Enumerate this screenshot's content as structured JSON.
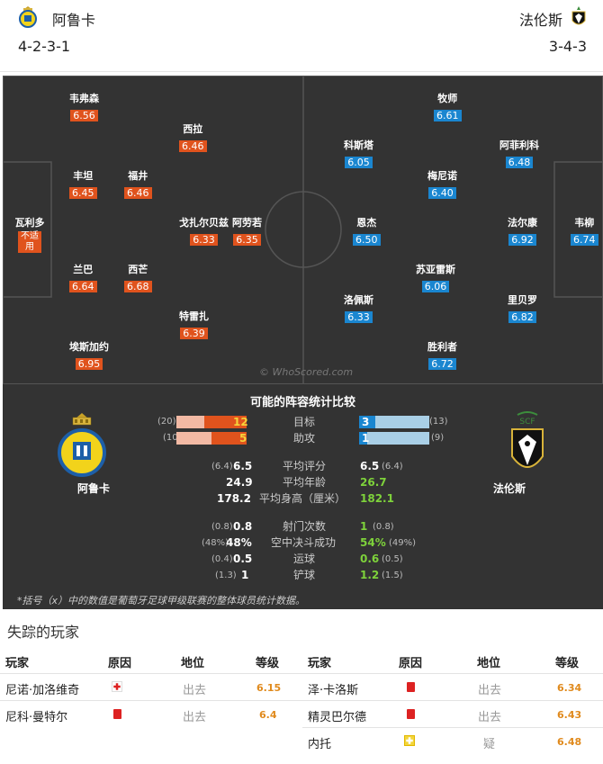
{
  "header": {
    "home_name": "阿鲁卡",
    "home_formation": "4-2-3-1",
    "away_name": "法伦斯",
    "away_formation": "3-4-3"
  },
  "pitch": {
    "watermark": "© WhoScored.com",
    "home_players": [
      {
        "name": "韦弗森",
        "rating": "6.56"
      },
      {
        "name": "西拉",
        "rating": "6.46"
      },
      {
        "name": "丰坦",
        "rating": "6.45"
      },
      {
        "name": "福井",
        "rating": "6.46"
      },
      {
        "name": "瓦利多",
        "rating": "不适用"
      },
      {
        "name": "戈扎尔贝兹",
        "rating": "6.33"
      },
      {
        "name": "阿劳若",
        "rating": "6.35"
      },
      {
        "name": "兰巴",
        "rating": "6.64"
      },
      {
        "name": "西芒",
        "rating": "6.68"
      },
      {
        "name": "特雷扎",
        "rating": "6.39"
      },
      {
        "name": "埃斯加约",
        "rating": "6.95"
      }
    ],
    "away_players": [
      {
        "name": "牧师",
        "rating": "6.61"
      },
      {
        "name": "科斯塔",
        "rating": "6.05"
      },
      {
        "name": "阿菲利科",
        "rating": "6.48"
      },
      {
        "name": "梅尼诺",
        "rating": "6.40"
      },
      {
        "name": "恩杰",
        "rating": "6.50"
      },
      {
        "name": "法尔康",
        "rating": "6.92"
      },
      {
        "name": "韦柳",
        "rating": "6.74"
      },
      {
        "name": "苏亚雷斯",
        "rating": "6.06"
      },
      {
        "name": "洛佩斯",
        "rating": "6.33"
      },
      {
        "name": "里贝罗",
        "rating": "6.82"
      },
      {
        "name": "胜利者",
        "rating": "6.72"
      }
    ]
  },
  "compare": {
    "title": "可能的阵容统计比较",
    "home_name": "阿鲁卡",
    "away_name": "法伦斯",
    "bars": [
      {
        "label": "目标",
        "home_avg": "(20)",
        "home": "12",
        "home_frac": 0.6,
        "away": "3",
        "away_avg": "(13)",
        "away_frac": 0.23
      },
      {
        "label": "助攻",
        "home_avg": "(10)",
        "home": "5",
        "home_frac": 0.5,
        "away": "1",
        "away_avg": "(9)",
        "away_frac": 0.11
      }
    ],
    "stats1": [
      {
        "label": "平均评分",
        "home_avg": "(6.4)",
        "home": "6.5",
        "away": "6.5",
        "away_avg": "(6.4)"
      },
      {
        "label": "平均年龄",
        "home_avg": "",
        "home": "24.9",
        "away": "26.7",
        "away_avg": ""
      },
      {
        "label": "平均身高（厘米）",
        "home_avg": "",
        "home": "178.2",
        "away": "182.1",
        "away_avg": ""
      }
    ],
    "stats2": [
      {
        "label": "射门次数",
        "home_avg": "(0.8)",
        "home": "0.8",
        "away": "1",
        "away_avg": "(0.8)"
      },
      {
        "label": "空中决斗成功",
        "home_avg": "(48%)",
        "home": "48%",
        "away": "54%",
        "away_avg": "(49%)"
      },
      {
        "label": "运球",
        "home_avg": "(0.4)",
        "home": "0.5",
        "away": "0.6",
        "away_avg": "(0.5)"
      },
      {
        "label": "铲球",
        "home_avg": "(1.3)",
        "home": "1",
        "away": "1.2",
        "away_avg": "(1.5)"
      }
    ],
    "footnote": "*括号（x）中的数值是葡萄牙足球甲级联赛的整体球员统计数据。"
  },
  "missing": {
    "title": "失踪的玩家",
    "headers": {
      "player": "玩家",
      "reason": "原因",
      "position": "地位",
      "rating": "等级"
    },
    "home": [
      {
        "player": "尼诺·加洛维奇",
        "reason_icon": "injury-icon",
        "position": "出去",
        "rating": "6.15"
      },
      {
        "player": "尼科·曼特尔",
        "reason_icon": "red-card-icon",
        "position": "出去",
        "rating": "6.4"
      }
    ],
    "away": [
      {
        "player": "泽·卡洛斯",
        "reason_icon": "red-card-icon",
        "position": "出去",
        "rating": "6.34"
      },
      {
        "player": "精灵巴尔德",
        "reason_icon": "red-card-icon",
        "position": "出去",
        "rating": "6.43"
      },
      {
        "player": "内托",
        "reason_icon": "doubtful-icon",
        "position": "疑",
        "rating": "6.48"
      }
    ]
  },
  "colors": {
    "home_rating": "#e0531d",
    "away_rating": "#1a86d0",
    "away_stat": "#7ed23b",
    "missing_rating": "#e08a1d"
  }
}
